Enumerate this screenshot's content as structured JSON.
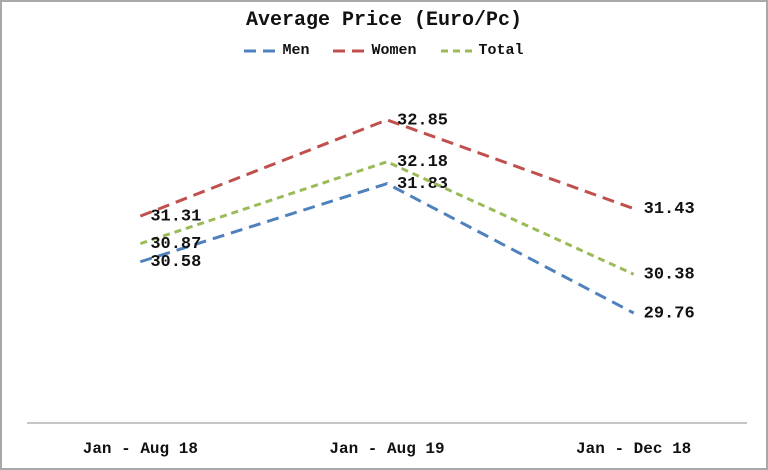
{
  "frame": {
    "background": "#ffffff",
    "border_color": "#a9a9a9"
  },
  "chart_data": {
    "type": "line",
    "title": "Average Price (Euro/Pc)",
    "xlabel": "",
    "ylabel": "",
    "categories": [
      "Jan - Aug 18",
      "Jan - Aug 19",
      "Jan - Dec 18"
    ],
    "series": [
      {
        "name": "Men",
        "color": "#4F81BD",
        "dash": "12 7",
        "values": [
          30.58,
          31.83,
          29.76
        ]
      },
      {
        "name": "Women",
        "color": "#C0504D",
        "dash": "12 7",
        "values": [
          31.31,
          32.85,
          31.43
        ]
      },
      {
        "name": "Total",
        "color": "#9BBB59",
        "dash": "7 5",
        "values": [
          30.87,
          32.18,
          30.38
        ]
      }
    ],
    "ylim": [
      28,
      34
    ],
    "grid": false,
    "y_axis_visible": false,
    "legend_position": "top",
    "value_labels": "right",
    "value_label_decimals": 2,
    "axis_line_color": "#8c8c8c",
    "label_color": "#111111"
  }
}
